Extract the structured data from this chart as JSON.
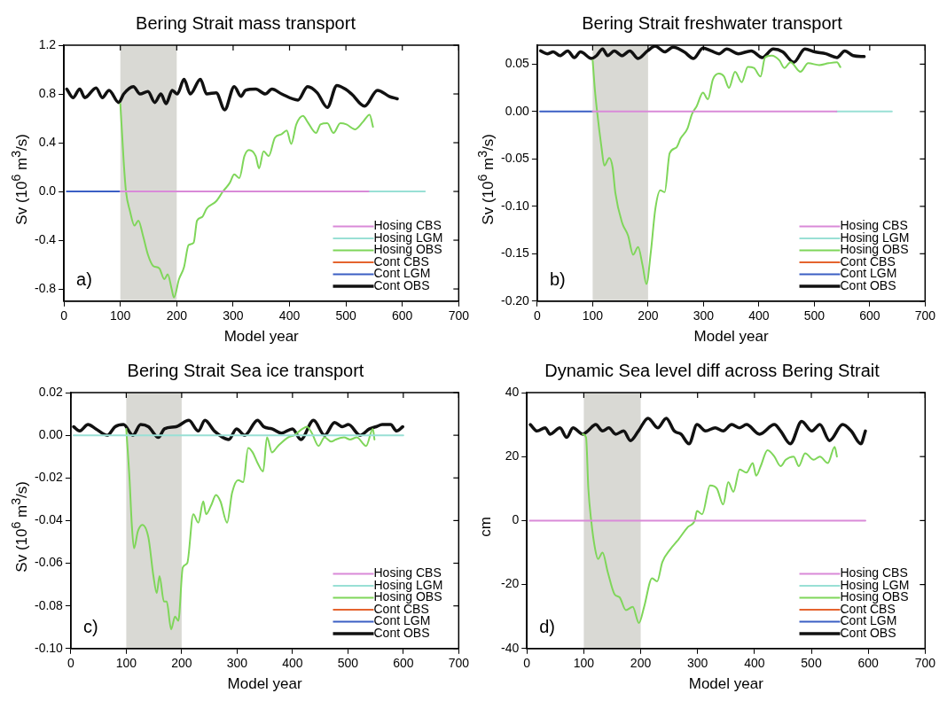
{
  "chart_data": [
    {
      "type": "line",
      "title": "Bering Strait mass transport",
      "xlabel": "Model year",
      "ylabel": "Sv (10$^{6}$ m$^{3}$/s)",
      "annotations": [
        "a)"
      ],
      "legend": "bottom right",
      "marker": "none",
      "xlim": [
        0,
        700
      ],
      "xticks": [
        0,
        100,
        200,
        300,
        400,
        500,
        600,
        700
      ],
      "ylim": [
        -0.9,
        1.2
      ],
      "yticks": [
        {
          "value": -0.8,
          "label": "-0.8"
        },
        -0.4,
        {
          "value": 0,
          "label": "0.0"
        },
        0.4,
        0.8,
        1.2
      ],
      "bands": [
        {
          "axis": "x",
          "from": 100,
          "to": 200,
          "color": "#d9d9d4"
        }
      ],
      "series": [
        {
          "name": "Hosing CBS",
          "color": "#d98ad8",
          "x": [
            100,
            540
          ],
          "values": [
            0,
            0
          ]
        },
        {
          "name": "Hosing LGM",
          "color": "#99e0d5",
          "x": [
            540,
            640
          ],
          "values": [
            0,
            0
          ]
        },
        {
          "name": "Hosing OBS",
          "color": "#7fd65a",
          "x": [
            100,
            106,
            110,
            117,
            125,
            132,
            140,
            149,
            158,
            169,
            178,
            184,
            191,
            195,
            204,
            213,
            221,
            230,
            236,
            245,
            253,
            270,
            282,
            294,
            302,
            311,
            320,
            328,
            340,
            346,
            354,
            363,
            374,
            386,
            395,
            403,
            412,
            424,
            432,
            447,
            455,
            467,
            478,
            490,
            501,
            516,
            530,
            542,
            548
          ],
          "values": [
            0.72,
            0.24,
            0.0,
            -0.16,
            -0.28,
            -0.24,
            -0.36,
            -0.52,
            -0.61,
            -0.63,
            -0.72,
            -0.68,
            -0.8,
            -0.87,
            -0.72,
            -0.62,
            -0.44,
            -0.42,
            -0.24,
            -0.21,
            -0.14,
            -0.08,
            0.0,
            0.07,
            0.14,
            0.11,
            0.29,
            0.34,
            0.29,
            0.19,
            0.33,
            0.29,
            0.44,
            0.47,
            0.5,
            0.39,
            0.55,
            0.62,
            0.57,
            0.48,
            0.55,
            0.56,
            0.48,
            0.56,
            0.55,
            0.51,
            0.57,
            0.63,
            0.53
          ]
        },
        {
          "name": "Cont CBS",
          "color": "#e5642e"
        },
        {
          "name": "Cont LGM",
          "color": "#3b5fc4",
          "x": [
            5,
            100
          ],
          "values": [
            0,
            0
          ]
        },
        {
          "name": "Cont OBS",
          "color": "#111111",
          "x": [
            5,
            16,
            28,
            37,
            57,
            68,
            80,
            97,
            106,
            123,
            135,
            149,
            161,
            172,
            181,
            192,
            201,
            213,
            224,
            242,
            253,
            270,
            285,
            302,
            314,
            322,
            340,
            357,
            369,
            386,
            415,
            432,
            449,
            467,
            484,
            499,
            510,
            533,
            556,
            577,
            591
          ],
          "values": [
            0.84,
            0.77,
            0.84,
            0.77,
            0.85,
            0.77,
            0.83,
            0.73,
            0.8,
            0.86,
            0.8,
            0.82,
            0.73,
            0.8,
            0.72,
            0.83,
            0.8,
            0.92,
            0.8,
            0.92,
            0.8,
            0.81,
            0.67,
            0.86,
            0.78,
            0.83,
            0.84,
            0.8,
            0.84,
            0.8,
            0.75,
            0.86,
            0.81,
            0.69,
            0.87,
            0.84,
            0.8,
            0.7,
            0.83,
            0.78,
            0.76
          ]
        }
      ]
    },
    {
      "type": "line",
      "title": "Bering Strait freshwater transport",
      "xlabel": "Model year",
      "ylabel": "Sv (10$^{6}$ m$^{3}$/s)",
      "annotations": [
        "b)"
      ],
      "legend": "bottom right",
      "marker": "none",
      "xlim": [
        0,
        700
      ],
      "xticks": [
        0,
        100,
        200,
        300,
        400,
        500,
        600,
        700
      ],
      "ylim": [
        -0.2,
        0.07
      ],
      "yticks": [
        {
          "value": -0.2,
          "label": "-0.20"
        },
        -0.15,
        {
          "value": -0.1,
          "label": "-0.10"
        },
        -0.05,
        {
          "value": 0,
          "label": "0.00"
        },
        0.05
      ],
      "bands": [
        {
          "axis": "x",
          "from": 100,
          "to": 200,
          "color": "#d9d9d4"
        }
      ],
      "series": [
        {
          "name": "Hosing CBS",
          "color": "#d98ad8",
          "x": [
            100,
            540
          ],
          "values": [
            0,
            0
          ]
        },
        {
          "name": "Hosing LGM",
          "color": "#99e0d5",
          "x": [
            540,
            640
          ],
          "values": [
            0,
            0
          ]
        },
        {
          "name": "Hosing OBS",
          "color": "#7fd65a",
          "x": [
            100,
            104,
            108,
            116,
            121,
            130,
            136,
            141,
            153,
            164,
            173,
            182,
            190,
            197,
            205,
            213,
            222,
            230,
            239,
            251,
            259,
            271,
            279,
            288,
            299,
            308,
            317,
            328,
            337,
            346,
            357,
            369,
            380,
            391,
            403,
            411,
            423,
            437,
            446,
            457,
            475,
            489,
            509,
            526,
            541,
            547
          ],
          "values": [
            0.054,
            0.023,
            0.0,
            -0.038,
            -0.057,
            -0.049,
            -0.059,
            -0.086,
            -0.117,
            -0.131,
            -0.151,
            -0.143,
            -0.162,
            -0.182,
            -0.148,
            -0.103,
            -0.083,
            -0.085,
            -0.044,
            -0.038,
            -0.028,
            -0.018,
            -0.003,
            0.006,
            0.02,
            0.013,
            0.034,
            0.04,
            0.037,
            0.025,
            0.042,
            0.031,
            0.047,
            0.046,
            0.037,
            0.057,
            0.059,
            0.054,
            0.046,
            0.052,
            0.042,
            0.051,
            0.049,
            0.051,
            0.052,
            0.047
          ]
        },
        {
          "name": "Cont CBS",
          "color": "#e5642e"
        },
        {
          "name": "Cont LGM",
          "color": "#3b5fc4",
          "x": [
            5,
            100
          ],
          "values": [
            0,
            0
          ]
        },
        {
          "name": "Cont OBS",
          "color": "#111111",
          "x": [
            6,
            18,
            29,
            41,
            55,
            67,
            78,
            98,
            107,
            118,
            127,
            139,
            153,
            167,
            182,
            199,
            213,
            230,
            245,
            265,
            282,
            299,
            314,
            328,
            342,
            363,
            386,
            406,
            426,
            443,
            463,
            483,
            501,
            521,
            541,
            555,
            570,
            590
          ],
          "values": [
            0.064,
            0.061,
            0.063,
            0.059,
            0.064,
            0.057,
            0.063,
            0.056,
            0.059,
            0.066,
            0.059,
            0.064,
            0.059,
            0.064,
            0.056,
            0.064,
            0.069,
            0.063,
            0.068,
            0.063,
            0.056,
            0.067,
            0.064,
            0.061,
            0.066,
            0.061,
            0.064,
            0.057,
            0.066,
            0.063,
            0.052,
            0.066,
            0.063,
            0.061,
            0.057,
            0.064,
            0.059,
            0.058
          ]
        }
      ]
    },
    {
      "type": "line",
      "title": "Bering Strait Sea ice transport",
      "xlabel": "Model year",
      "ylabel": "Sv (10$^{6}$ m$^{3}$/s)",
      "annotations": [
        "c)"
      ],
      "legend": "bottom right",
      "marker": "none",
      "xlim": [
        0,
        700
      ],
      "xticks": [
        0,
        100,
        200,
        300,
        400,
        500,
        600,
        700
      ],
      "ylim": [
        -0.1,
        0.02
      ],
      "yticks": [
        {
          "value": -0.1,
          "label": "-0.10"
        },
        -0.08,
        -0.06,
        -0.04,
        -0.02,
        {
          "value": 0,
          "label": "0.00"
        },
        0.02
      ],
      "bands": [
        {
          "axis": "x",
          "from": 100,
          "to": 200,
          "color": "#d9d9d4"
        }
      ],
      "series": [
        {
          "name": "Hosing CBS",
          "color": "#d98ad8"
        },
        {
          "name": "Hosing LGM",
          "color": "#99e0d5",
          "x": [
            5,
            600
          ],
          "values": [
            0,
            0
          ]
        },
        {
          "name": "Hosing OBS",
          "color": "#7fd65a",
          "x": [
            100,
            106,
            110,
            114,
            121,
            129,
            140,
            149,
            155,
            160,
            168,
            173,
            181,
            188,
            194,
            202,
            210,
            221,
            230,
            239,
            244,
            253,
            262,
            270,
            282,
            291,
            302,
            311,
            320,
            328,
            337,
            347,
            354,
            363,
            374,
            392,
            403,
            418,
            426,
            435,
            447,
            458,
            470,
            478,
            493,
            504,
            516,
            533,
            545,
            548
          ],
          "values": [
            0.003,
            -0.021,
            -0.042,
            -0.053,
            -0.045,
            -0.042,
            -0.048,
            -0.066,
            -0.074,
            -0.066,
            -0.078,
            -0.078,
            -0.091,
            -0.085,
            -0.087,
            -0.062,
            -0.06,
            -0.037,
            -0.041,
            -0.031,
            -0.037,
            -0.033,
            -0.028,
            -0.031,
            -0.041,
            -0.027,
            -0.021,
            -0.022,
            -0.006,
            -0.008,
            -0.013,
            -0.017,
            -0.001,
            -0.008,
            -0.005,
            -0.001,
            0.0,
            0.003,
            0.004,
            0.001,
            -0.005,
            -0.001,
            -0.003,
            -0.002,
            -0.001,
            -0.002,
            -0.001,
            -0.005,
            0.003,
            -0.002
          ]
        },
        {
          "name": "Cont CBS",
          "color": "#e5642e"
        },
        {
          "name": "Cont LGM",
          "color": "#3b5fc4"
        },
        {
          "name": "Cont OBS",
          "color": "#111111",
          "x": [
            5,
            16,
            31,
            45,
            66,
            80,
            95,
            112,
            126,
            140,
            158,
            169,
            190,
            213,
            230,
            242,
            259,
            285,
            299,
            314,
            337,
            348,
            363,
            380,
            400,
            415,
            438,
            458,
            476,
            490,
            501,
            522,
            539,
            551,
            562,
            577,
            588,
            599
          ],
          "values": [
            0.004,
            0.002,
            0.005,
            0.003,
            0.0,
            0.004,
            0.005,
            0.0,
            0.005,
            0.004,
            -0.001,
            0.003,
            0.004,
            0.007,
            0.002,
            0.007,
            0.002,
            -0.002,
            0.003,
            0.0,
            0.007,
            0.004,
            0.003,
            0.001,
            0.003,
            -0.002,
            0.007,
            0.0,
            0.006,
            0.004,
            0.005,
            0.0,
            0.003,
            0.004,
            0.005,
            0.005,
            0.002,
            0.004
          ]
        }
      ]
    },
    {
      "type": "line",
      "title": "Dynamic Sea level diff across Bering Strait",
      "xlabel": "Model year",
      "ylabel": "cm",
      "annotations": [
        "d)"
      ],
      "legend": "bottom right",
      "marker": "none",
      "xlim": [
        0,
        700
      ],
      "xticks": [
        0,
        100,
        200,
        300,
        400,
        500,
        600,
        700
      ],
      "ylim": [
        -40,
        40
      ],
      "yticks": [
        -40,
        -20,
        0,
        20,
        40
      ],
      "bands": [
        {
          "axis": "x",
          "from": 100,
          "to": 200,
          "color": "#d9d9d4"
        }
      ],
      "series": [
        {
          "name": "Hosing CBS",
          "color": "#d98ad8",
          "x": [
            5,
            595
          ],
          "values": [
            0,
            0
          ]
        },
        {
          "name": "Hosing LGM",
          "color": "#99e0d5"
        },
        {
          "name": "Hosing OBS",
          "color": "#7fd65a",
          "x": [
            98,
            104,
            108,
            113,
            120,
            125,
            133,
            142,
            154,
            163,
            174,
            186,
            197,
            206,
            220,
            229,
            238,
            252,
            266,
            283,
            295,
            299,
            308,
            322,
            334,
            345,
            354,
            363,
            374,
            386,
            397,
            403,
            411,
            423,
            435,
            446,
            455,
            469,
            478,
            489,
            504,
            515,
            529,
            541,
            545
          ],
          "values": [
            27,
            26,
            10,
            0,
            -9,
            -12,
            -10,
            -16,
            -23,
            -24,
            -28,
            -27,
            -32,
            -27,
            -18,
            -19,
            -13,
            -9,
            -6,
            -2,
            0,
            3,
            2,
            11,
            10,
            5,
            12,
            9,
            16,
            15,
            18,
            14,
            17,
            22,
            20,
            17,
            19,
            20,
            17,
            21,
            19,
            20,
            18,
            23,
            20
          ]
        },
        {
          "name": "Cont CBS",
          "color": "#e5642e"
        },
        {
          "name": "Cont LGM",
          "color": "#3b5fc4"
        },
        {
          "name": "Cont OBS",
          "color": "#111111",
          "x": [
            6,
            18,
            32,
            41,
            58,
            70,
            81,
            98,
            107,
            121,
            133,
            144,
            156,
            170,
            182,
            196,
            213,
            230,
            245,
            259,
            271,
            285,
            299,
            314,
            331,
            345,
            360,
            374,
            386,
            409,
            435,
            446,
            463,
            483,
            501,
            515,
            532,
            555,
            570,
            587,
            595
          ],
          "values": [
            30,
            28,
            29,
            27,
            29,
            26,
            29,
            27,
            28,
            30,
            28,
            29,
            27,
            28,
            25,
            28,
            32,
            29,
            32,
            28,
            27,
            24,
            30,
            28,
            29,
            28,
            30,
            29,
            30,
            27,
            30,
            28,
            24,
            31,
            28,
            30,
            25,
            30,
            28,
            24,
            28
          ]
        }
      ]
    }
  ]
}
